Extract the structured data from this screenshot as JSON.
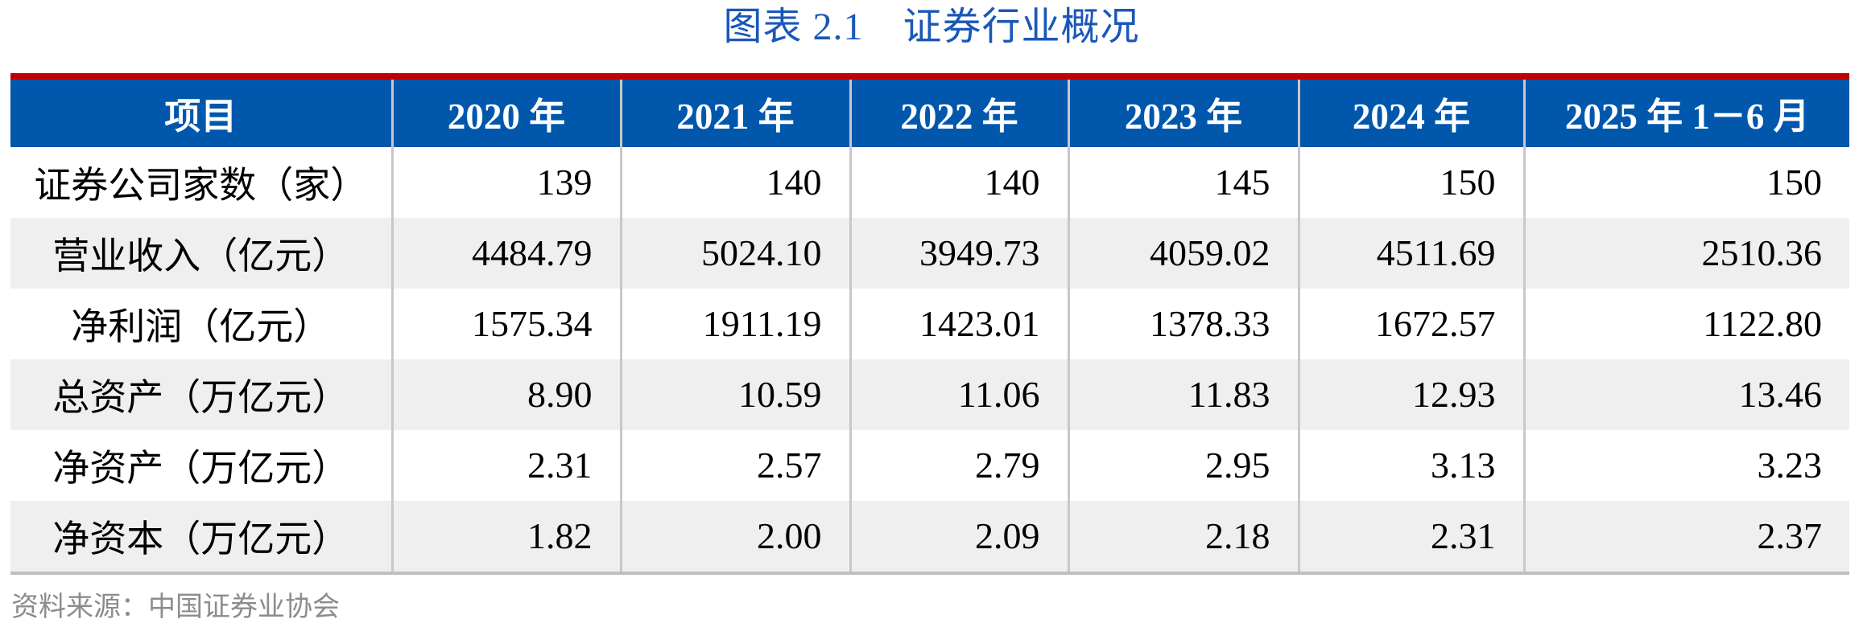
{
  "title": "图表 2.1　证券行业概况",
  "source_note": "资料来源：中国证券业协会",
  "colors": {
    "title_blue": "#1A57B8",
    "header_bg": "#0057AC",
    "header_text": "#FFFFFF",
    "top_bar_red": "#C00000",
    "alt_row_bg": "#EFEFEF",
    "divider_gray": "#C8C8C8",
    "bottom_border_gray": "#BFBFBF",
    "body_text": "#000000",
    "source_text_gray": "#8C8C8C"
  },
  "table": {
    "columns": [
      "项目",
      "2020 年",
      "2021 年",
      "2022 年",
      "2023 年",
      "2024 年",
      "2025 年 1－6 月"
    ],
    "rows": [
      {
        "label": "证券公司家数（家）",
        "values": [
          "139",
          "140",
          "140",
          "145",
          "150",
          "150"
        ]
      },
      {
        "label": "营业收入（亿元）",
        "values": [
          "4484.79",
          "5024.10",
          "3949.73",
          "4059.02",
          "4511.69",
          "2510.36"
        ]
      },
      {
        "label": "净利润（亿元）",
        "values": [
          "1575.34",
          "1911.19",
          "1423.01",
          "1378.33",
          "1672.57",
          "1122.80"
        ]
      },
      {
        "label": "总资产（万亿元）",
        "values": [
          "8.90",
          "10.59",
          "11.06",
          "11.83",
          "12.93",
          "13.46"
        ]
      },
      {
        "label": "净资产（万亿元）",
        "values": [
          "2.31",
          "2.57",
          "2.79",
          "2.95",
          "3.13",
          "3.23"
        ]
      },
      {
        "label": "净资本（万亿元）",
        "values": [
          "1.82",
          "2.00",
          "2.09",
          "2.18",
          "2.31",
          "2.37"
        ]
      }
    ]
  },
  "chart_data": {
    "type": "table",
    "title": "图表 2.1　证券行业概况",
    "categories": [
      "2020",
      "2021",
      "2022",
      "2023",
      "2024",
      "2025年1-6月"
    ],
    "series": [
      {
        "name": "证券公司家数（家）",
        "values": [
          139,
          140,
          140,
          145,
          150,
          150
        ]
      },
      {
        "name": "营业收入（亿元）",
        "values": [
          4484.79,
          5024.1,
          3949.73,
          4059.02,
          4511.69,
          2510.36
        ]
      },
      {
        "name": "净利润（亿元）",
        "values": [
          1575.34,
          1911.19,
          1423.01,
          1378.33,
          1672.57,
          1122.8
        ]
      },
      {
        "name": "总资产（万亿元）",
        "values": [
          8.9,
          10.59,
          11.06,
          11.83,
          12.93,
          13.46
        ]
      },
      {
        "name": "净资产（万亿元）",
        "values": [
          2.31,
          2.57,
          2.79,
          2.95,
          3.13,
          3.23
        ]
      },
      {
        "name": "净资本（万亿元）",
        "values": [
          1.82,
          2.0,
          2.09,
          2.18,
          2.31,
          2.37
        ]
      }
    ]
  }
}
